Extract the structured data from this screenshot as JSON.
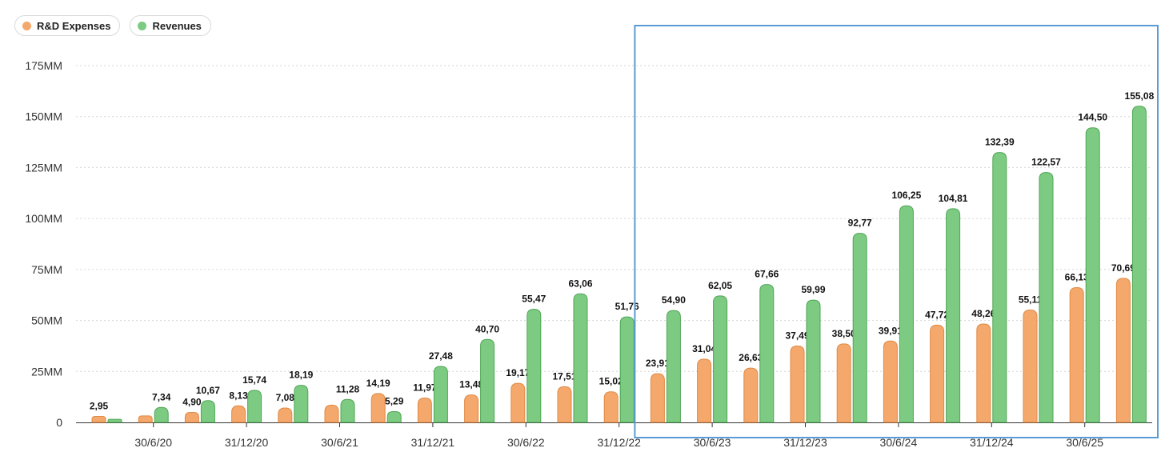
{
  "legend": {
    "items": [
      {
        "label": "R&D Expenses",
        "color": "#f4a86b"
      },
      {
        "label": "Revenues",
        "color": "#7dcb82"
      }
    ]
  },
  "chart_data": {
    "type": "bar",
    "y_ticks": [
      "0",
      "25MM",
      "50MM",
      "75MM",
      "100MM",
      "125MM",
      "150MM",
      "175MM"
    ],
    "ylim": [
      0,
      175
    ],
    "grid": true,
    "legend_position": "top-left",
    "x_tick_labels": [
      {
        "label": "30/6/20",
        "index": 1
      },
      {
        "label": "31/12/20",
        "index": 3
      },
      {
        "label": "30/6/21",
        "index": 5
      },
      {
        "label": "31/12/21",
        "index": 7
      },
      {
        "label": "30/6/22",
        "index": 9
      },
      {
        "label": "31/12/22",
        "index": 11
      },
      {
        "label": "30/6/23",
        "index": 13
      },
      {
        "label": "31/12/23",
        "index": 15
      },
      {
        "label": "30/6/24",
        "index": 17
      },
      {
        "label": "31/12/24",
        "index": 19
      },
      {
        "label": "30/6/25",
        "index": 21
      }
    ],
    "series": [
      {
        "name": "R&D Expenses",
        "color": "#f4a86b",
        "stroke": "#e08a45",
        "values": [
          2.95,
          3.2,
          4.9,
          8.13,
          7.08,
          8.5,
          14.19,
          11.97,
          13.48,
          19.17,
          17.51,
          15.02,
          23.91,
          31.04,
          26.63,
          37.49,
          38.5,
          39.91,
          47.72,
          48.26,
          55.11,
          66.13,
          70.69
        ],
        "labels": [
          "2,95",
          "",
          "4,90",
          "8,13",
          "7,08",
          "",
          "14,19",
          "11,97",
          "13,48",
          "19,17",
          "17,51",
          "15,02",
          "23,91",
          "31,04",
          "26,63",
          "37,49",
          "38,50",
          "39,91",
          "47,72",
          "48,26",
          "55,11",
          "66,13",
          "70,69"
        ]
      },
      {
        "name": "Revenues",
        "color": "#7dcb82",
        "stroke": "#4fa656",
        "values": [
          1.5,
          7.34,
          10.67,
          15.74,
          18.19,
          11.28,
          5.29,
          27.48,
          40.7,
          55.47,
          63.06,
          51.76,
          54.9,
          62.05,
          67.66,
          59.99,
          92.77,
          106.25,
          104.81,
          132.39,
          122.57,
          144.5,
          155.08
        ],
        "labels": [
          "",
          "7,34",
          "10,67",
          "15,74",
          "18,19",
          "11,28",
          "5,29",
          "27,48",
          "40,70",
          "55,47",
          "63,06",
          "51,76",
          "54,90",
          "62,05",
          "67,66",
          "59,99",
          "92,77",
          "106,25",
          "104,81",
          "132,39",
          "122,57",
          "144,50",
          "155,08"
        ]
      }
    ],
    "highlight": {
      "from_index": 12,
      "to_index": 22,
      "color": "#5b9bd5"
    }
  }
}
